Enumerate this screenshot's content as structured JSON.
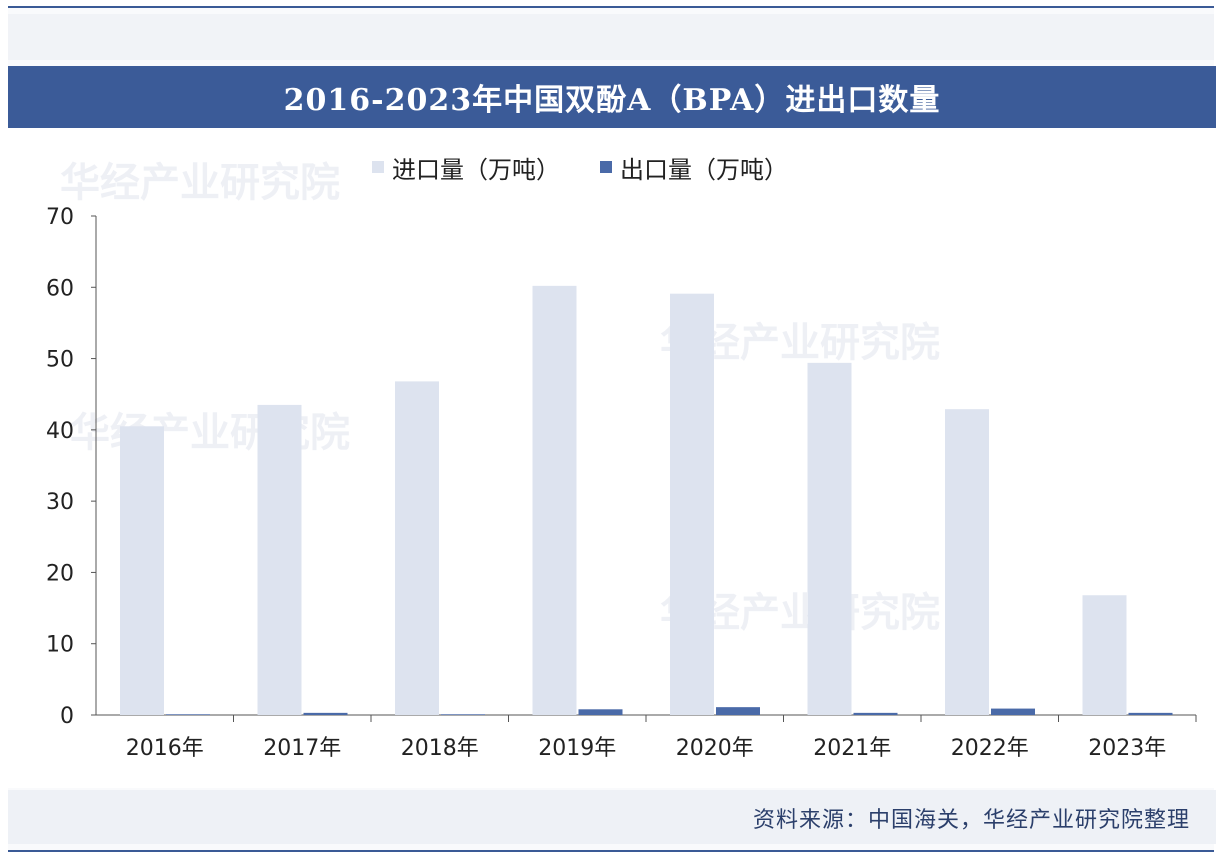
{
  "title": "2016-2023年中国双酚A（BPA）进出口数量",
  "source": "资料来源：中国海关，华经产业研究院整理",
  "watermark": "华经产业研究院",
  "colors": {
    "title_bg": "#3b5b98",
    "import": "#dde3ef",
    "export": "#4a6aa8"
  },
  "chart_data": {
    "type": "bar",
    "categories": [
      "2016年",
      "2017年",
      "2018年",
      "2019年",
      "2020年",
      "2021年",
      "2022年",
      "2023年"
    ],
    "series": [
      {
        "name": "进口量（万吨）",
        "values": [
          40.5,
          43.5,
          46.8,
          60.2,
          59.1,
          49.4,
          42.9,
          16.8
        ]
      },
      {
        "name": "出口量（万吨）",
        "values": [
          0.1,
          0.3,
          0.1,
          0.8,
          1.1,
          0.3,
          0.9,
          0.3
        ]
      }
    ],
    "ylim": [
      0,
      70
    ],
    "yticks": [
      "0",
      "10",
      "20",
      "30",
      "40",
      "50",
      "60",
      "70"
    ],
    "legend": "top"
  }
}
